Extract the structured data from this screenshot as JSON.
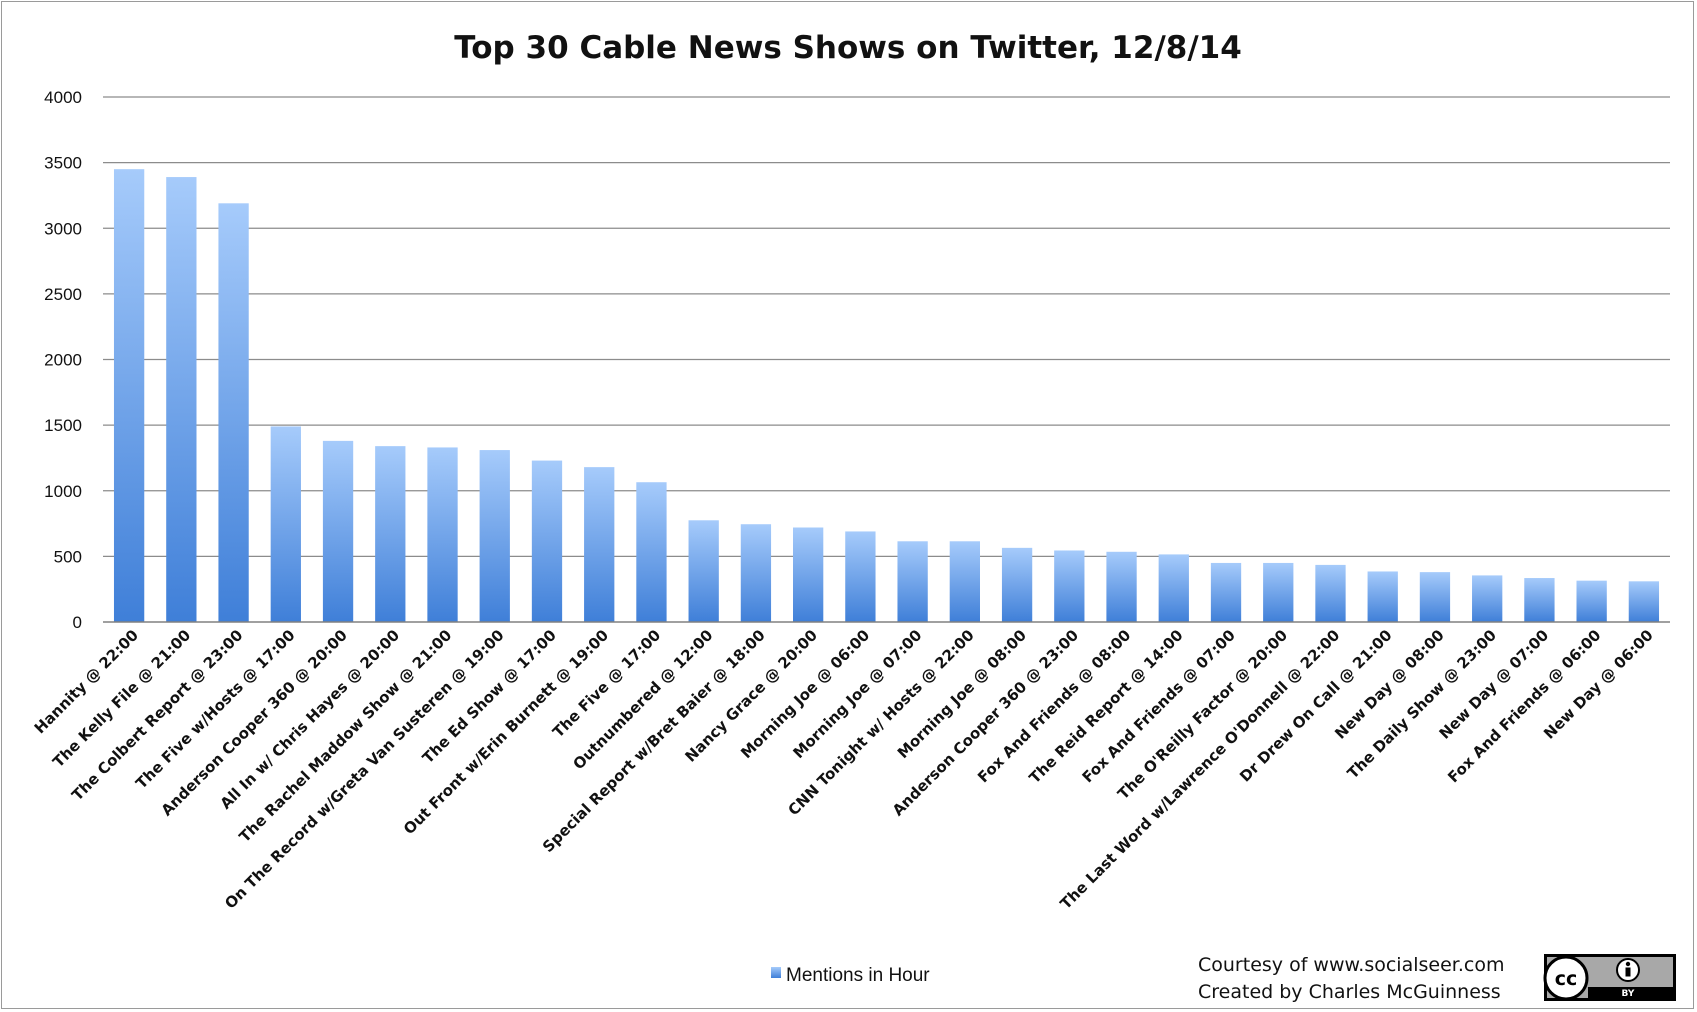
{
  "chart_data": {
    "type": "bar",
    "title": "Top 30 Cable News Shows on Twitter, 12/8/14",
    "xlabel": "",
    "ylabel": "",
    "ylim": [
      0,
      4000
    ],
    "yticks": [
      0,
      500,
      1000,
      1500,
      2000,
      2500,
      3000,
      3500,
      4000
    ],
    "grid": true,
    "legend_position": "bottom",
    "categories": [
      "Hannity @ 22:00",
      "The Kelly File @ 21:00",
      "The Colbert Report @ 23:00",
      "The Five w/Hosts @ 17:00",
      "Anderson Cooper 360 @ 20:00",
      "All In w/ Chris Hayes @ 20:00",
      "The Rachel Maddow Show @ 21:00",
      "On The Record w/Greta Van Susteren @ 19:00",
      "The Ed Show @ 17:00",
      "Out Front w/Erin Burnett @ 19:00",
      "The Five @ 17:00",
      "Outnumbered @ 12:00",
      "Special Report w/Bret Baier @ 18:00",
      "Nancy Grace @ 20:00",
      "Morning Joe @ 06:00",
      "Morning Joe @ 07:00",
      "CNN Tonight w/ Hosts @ 22:00",
      "Morning Joe @ 08:00",
      "Anderson Cooper 360 @ 23:00",
      "Fox And Friends @ 08:00",
      "The Reid Report @ 14:00",
      "Fox And Friends @ 07:00",
      "The O'Reilly Factor @ 20:00",
      "The Last Word w/Lawrence O'Donnell @ 22:00",
      "Dr Drew On Call @ 21:00",
      "New Day @ 08:00",
      "The Daily Show @ 23:00",
      "New Day @ 07:00",
      "Fox And Friends @ 06:00",
      "New Day @ 06:00"
    ],
    "series": [
      {
        "name": "Mentions in Hour",
        "color": "#5b9ae6",
        "values": [
          3450,
          3390,
          3190,
          1490,
          1380,
          1340,
          1330,
          1310,
          1230,
          1180,
          1065,
          775,
          745,
          720,
          690,
          615,
          615,
          565,
          545,
          535,
          515,
          450,
          450,
          435,
          385,
          380,
          355,
          335,
          315,
          310
        ]
      }
    ]
  },
  "footer": {
    "credit_line1": "Courtesy of www.socialseer.com",
    "credit_line2": "Created by Charles McGuinness"
  },
  "license_badge": {
    "icon": "creative-commons-by-icon",
    "cc_text": "cc",
    "by_text": "BY"
  }
}
